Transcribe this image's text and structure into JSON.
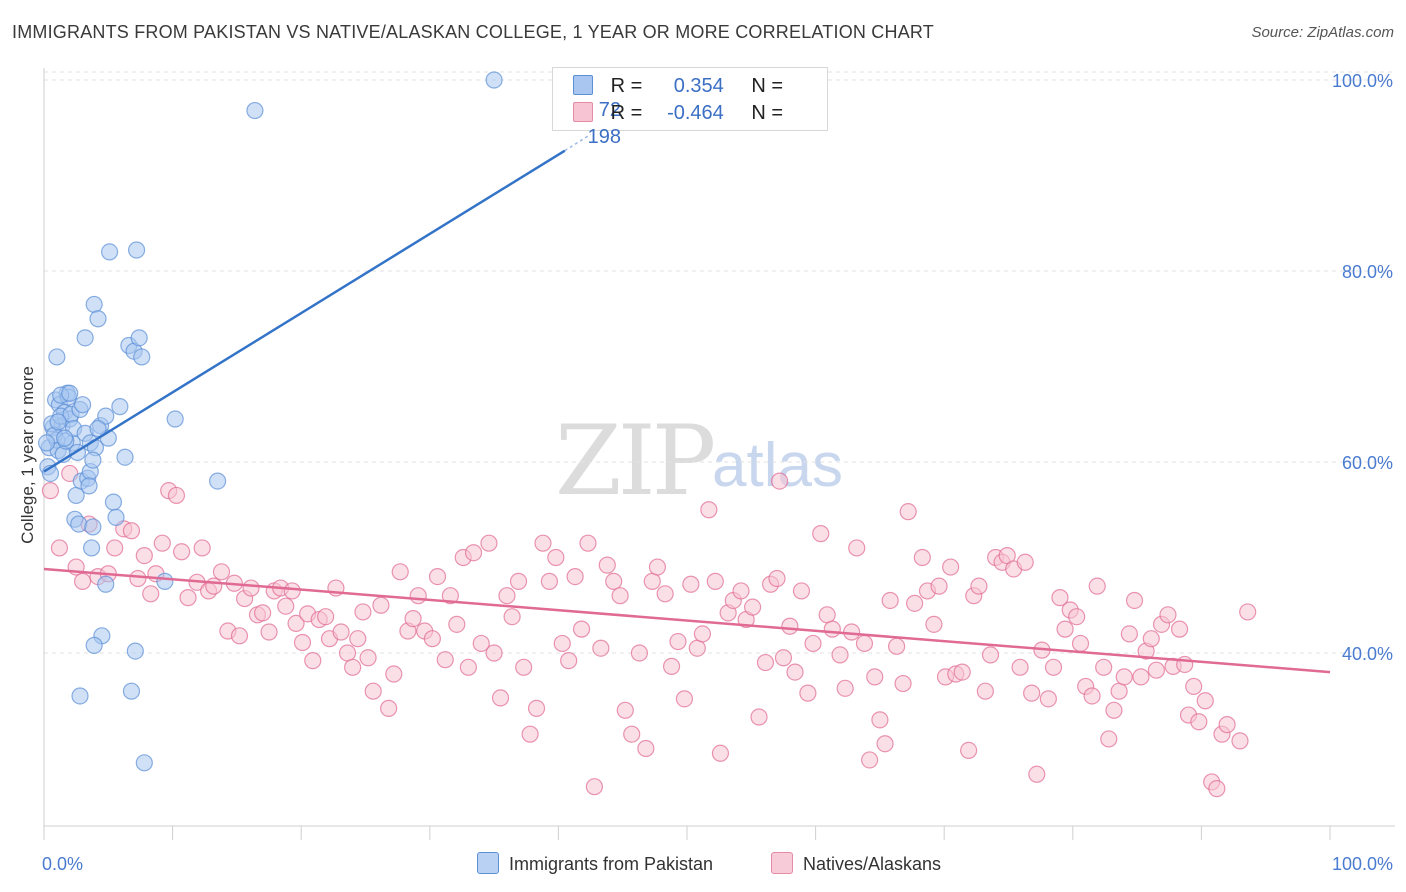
{
  "title": "IMMIGRANTS FROM PAKISTAN VS NATIVE/ALASKAN COLLEGE, 1 YEAR OR MORE CORRELATION CHART",
  "source": "Source: ZipAtlas.com",
  "watermark": {
    "zip": "ZIP",
    "atlas": "atlas"
  },
  "legend": {
    "rows": [
      {
        "r_label": "R =",
        "r_value": "0.354",
        "n_label": "N =",
        "n_value": "72",
        "color": "#a8c6f0",
        "border": "#5b8fd6"
      },
      {
        "r_label": "R =",
        "r_value": "-0.464",
        "n_label": "N =",
        "n_value": "198",
        "color": "#f7c4d3",
        "border": "#e68aa6"
      }
    ]
  },
  "bottom_legend": [
    {
      "label": "Immigrants from Pakistan",
      "color": "#b9d1f3",
      "border": "#5b8fd6"
    },
    {
      "label": "Natives/Alaskans",
      "color": "#f8cbd8",
      "border": "#e68aa6"
    }
  ],
  "chart_data": {
    "type": "scatter",
    "title": "IMMIGRANTS FROM PAKISTAN VS NATIVE/ALASKAN COLLEGE, 1 YEAR OR MORE CORRELATION CHART",
    "xlabel": "",
    "ylabel": "College, 1 year or more",
    "xlim": [
      0,
      100
    ],
    "ylim": [
      23,
      102
    ],
    "x_tick_labels": [
      "0.0%",
      "100.0%"
    ],
    "y_ticks": [
      40,
      60,
      80,
      100
    ],
    "y_tick_labels": [
      "40.0%",
      "60.0%",
      "80.0%",
      "100.0%"
    ],
    "grid": true,
    "legend_position": "top-center",
    "series": [
      {
        "name": "Immigrants from Pakistan",
        "color": "#5b8fd6",
        "fill": "#a8c6f0",
        "trend": {
          "x": [
            0,
            40.5
          ],
          "y": [
            59.0,
            92.6
          ],
          "dashed_ext": {
            "x": [
              40.5,
              42.5
            ],
            "y": [
              92.6,
              94.3
            ]
          }
        },
        "points": [
          [
            0.4,
            61.5
          ],
          [
            0.7,
            63.6
          ],
          [
            0.9,
            66.5
          ],
          [
            1.0,
            62.3
          ],
          [
            1.2,
            66.0
          ],
          [
            1.4,
            63.8
          ],
          [
            1.6,
            65.2
          ],
          [
            1.8,
            67.2
          ],
          [
            2.0,
            64.5
          ],
          [
            2.2,
            62.0
          ],
          [
            0.3,
            59.5
          ],
          [
            0.6,
            64.0
          ],
          [
            0.8,
            62.8
          ],
          [
            1.1,
            61.2
          ],
          [
            1.3,
            64.8
          ],
          [
            1.5,
            60.8
          ],
          [
            1.7,
            62.2
          ],
          [
            1.9,
            66.8
          ],
          [
            2.1,
            65.0
          ],
          [
            2.3,
            63.5
          ],
          [
            0.5,
            58.8
          ],
          [
            1.0,
            71.0
          ],
          [
            2.8,
            65.5
          ],
          [
            3.0,
            66.0
          ],
          [
            3.2,
            63.0
          ],
          [
            3.6,
            62.0
          ],
          [
            4.0,
            61.5
          ],
          [
            4.4,
            63.8
          ],
          [
            4.8,
            64.8
          ],
          [
            5.0,
            62.5
          ],
          [
            2.5,
            56.5
          ],
          [
            2.9,
            58.0
          ],
          [
            3.4,
            58.3
          ],
          [
            3.6,
            59.0
          ],
          [
            2.4,
            54.0
          ],
          [
            2.7,
            53.5
          ],
          [
            3.8,
            53.2
          ],
          [
            3.7,
            51.0
          ],
          [
            5.4,
            55.8
          ],
          [
            5.6,
            54.2
          ],
          [
            3.2,
            73.0
          ],
          [
            3.9,
            76.5
          ],
          [
            4.2,
            75.0
          ],
          [
            5.1,
            82.0
          ],
          [
            7.2,
            82.2
          ],
          [
            6.6,
            72.2
          ],
          [
            7.0,
            71.6
          ],
          [
            7.6,
            71.0
          ],
          [
            7.4,
            73.0
          ],
          [
            10.2,
            64.5
          ],
          [
            5.9,
            65.8
          ],
          [
            6.3,
            60.5
          ],
          [
            3.8,
            60.2
          ],
          [
            2.6,
            61.0
          ],
          [
            9.4,
            47.5
          ],
          [
            4.8,
            47.2
          ],
          [
            4.5,
            41.8
          ],
          [
            3.9,
            40.8
          ],
          [
            7.1,
            40.2
          ],
          [
            2.8,
            35.5
          ],
          [
            6.8,
            36.0
          ],
          [
            7.8,
            28.5
          ],
          [
            13.5,
            58.0
          ],
          [
            16.4,
            96.8
          ],
          [
            35.0,
            100.0
          ],
          [
            1.3,
            67.0
          ],
          [
            2.0,
            67.2
          ],
          [
            1.6,
            62.5
          ],
          [
            3.5,
            57.5
          ],
          [
            4.2,
            63.5
          ],
          [
            0.2,
            62.0
          ],
          [
            1.1,
            64.2
          ]
        ]
      },
      {
        "name": "Natives/Alaskans",
        "color": "#e06a93",
        "fill": "#f7c4d3",
        "trend": {
          "x": [
            0,
            100
          ],
          "y": [
            48.8,
            38.0
          ]
        },
        "points": [
          [
            0.5,
            57.0
          ],
          [
            1.2,
            51.0
          ],
          [
            2.0,
            58.8
          ],
          [
            2.5,
            49.0
          ],
          [
            3.0,
            47.5
          ],
          [
            3.5,
            53.5
          ],
          [
            4.2,
            48.0
          ],
          [
            5.0,
            48.3
          ],
          [
            5.5,
            51.0
          ],
          [
            6.2,
            53.0
          ],
          [
            6.8,
            52.8
          ],
          [
            7.3,
            47.8
          ],
          [
            7.8,
            50.2
          ],
          [
            8.3,
            46.2
          ],
          [
            8.7,
            48.3
          ],
          [
            9.2,
            51.5
          ],
          [
            9.7,
            57.0
          ],
          [
            10.3,
            56.5
          ],
          [
            10.7,
            50.6
          ],
          [
            11.2,
            45.8
          ],
          [
            11.9,
            47.4
          ],
          [
            12.3,
            51.0
          ],
          [
            12.8,
            46.5
          ],
          [
            13.2,
            47.0
          ],
          [
            13.8,
            48.5
          ],
          [
            14.3,
            42.3
          ],
          [
            14.8,
            47.3
          ],
          [
            15.2,
            41.8
          ],
          [
            15.6,
            45.7
          ],
          [
            16.1,
            46.8
          ],
          [
            16.6,
            44.0
          ],
          [
            17.0,
            44.2
          ],
          [
            17.5,
            42.2
          ],
          [
            17.9,
            46.5
          ],
          [
            18.4,
            46.8
          ],
          [
            18.8,
            44.9
          ],
          [
            19.3,
            46.5
          ],
          [
            19.6,
            43.1
          ],
          [
            20.1,
            41.1
          ],
          [
            20.5,
            44.1
          ],
          [
            20.9,
            39.2
          ],
          [
            21.4,
            43.5
          ],
          [
            21.9,
            43.8
          ],
          [
            22.2,
            41.5
          ],
          [
            22.7,
            46.8
          ],
          [
            23.1,
            42.2
          ],
          [
            23.6,
            40.0
          ],
          [
            24.0,
            38.5
          ],
          [
            24.4,
            41.5
          ],
          [
            24.8,
            44.3
          ],
          [
            25.2,
            39.5
          ],
          [
            25.6,
            36.0
          ],
          [
            26.2,
            45.0
          ],
          [
            26.8,
            34.2
          ],
          [
            27.2,
            37.8
          ],
          [
            27.7,
            48.5
          ],
          [
            28.3,
            42.3
          ],
          [
            28.7,
            43.6
          ],
          [
            29.1,
            46.0
          ],
          [
            29.6,
            42.3
          ],
          [
            30.2,
            41.5
          ],
          [
            30.6,
            48.0
          ],
          [
            31.2,
            39.3
          ],
          [
            31.6,
            46.0
          ],
          [
            32.1,
            43.0
          ],
          [
            32.6,
            50.0
          ],
          [
            33.0,
            38.5
          ],
          [
            33.4,
            50.5
          ],
          [
            34.0,
            41.0
          ],
          [
            34.6,
            51.5
          ],
          [
            35.0,
            40.0
          ],
          [
            35.5,
            35.3
          ],
          [
            36.0,
            46.0
          ],
          [
            36.4,
            43.8
          ],
          [
            36.9,
            47.5
          ],
          [
            37.3,
            38.5
          ],
          [
            37.8,
            31.5
          ],
          [
            38.3,
            34.2
          ],
          [
            38.8,
            51.5
          ],
          [
            39.3,
            47.5
          ],
          [
            39.8,
            50.0
          ],
          [
            40.3,
            41.0
          ],
          [
            40.8,
            39.2
          ],
          [
            41.3,
            48.0
          ],
          [
            41.8,
            42.5
          ],
          [
            42.3,
            51.5
          ],
          [
            42.8,
            26.0
          ],
          [
            43.3,
            40.5
          ],
          [
            43.8,
            49.2
          ],
          [
            44.3,
            47.5
          ],
          [
            44.8,
            46.0
          ],
          [
            45.2,
            34.0
          ],
          [
            45.7,
            31.5
          ],
          [
            46.3,
            40.0
          ],
          [
            46.8,
            30.0
          ],
          [
            47.3,
            47.5
          ],
          [
            47.7,
            49.0
          ],
          [
            48.3,
            46.2
          ],
          [
            48.8,
            38.6
          ],
          [
            49.3,
            41.2
          ],
          [
            49.8,
            35.2
          ],
          [
            50.3,
            47.2
          ],
          [
            50.8,
            40.5
          ],
          [
            51.2,
            42.0
          ],
          [
            51.7,
            55.0
          ],
          [
            52.2,
            47.5
          ],
          [
            52.6,
            29.5
          ],
          [
            53.2,
            44.2
          ],
          [
            53.6,
            45.5
          ],
          [
            54.2,
            46.5
          ],
          [
            54.6,
            43.5
          ],
          [
            55.1,
            44.8
          ],
          [
            55.6,
            33.3
          ],
          [
            56.1,
            39.0
          ],
          [
            56.5,
            47.2
          ],
          [
            57.0,
            47.8
          ],
          [
            57.5,
            39.5
          ],
          [
            58.0,
            42.8
          ],
          [
            58.4,
            38.0
          ],
          [
            58.9,
            46.5
          ],
          [
            59.4,
            35.8
          ],
          [
            59.8,
            41.0
          ],
          [
            60.4,
            52.5
          ],
          [
            60.9,
            44.0
          ],
          [
            61.3,
            42.5
          ],
          [
            61.9,
            39.8
          ],
          [
            62.3,
            36.3
          ],
          [
            62.8,
            42.2
          ],
          [
            63.2,
            51.0
          ],
          [
            63.8,
            41.0
          ],
          [
            64.2,
            28.8
          ],
          [
            64.6,
            37.5
          ],
          [
            65.0,
            33.0
          ],
          [
            65.4,
            30.5
          ],
          [
            65.8,
            45.5
          ],
          [
            66.3,
            40.7
          ],
          [
            66.8,
            36.8
          ],
          [
            67.2,
            54.8
          ],
          [
            67.7,
            45.2
          ],
          [
            68.3,
            50.0
          ],
          [
            68.7,
            46.5
          ],
          [
            69.2,
            43.0
          ],
          [
            69.6,
            47.0
          ],
          [
            70.1,
            37.5
          ],
          [
            70.5,
            49.0
          ],
          [
            70.9,
            37.8
          ],
          [
            71.4,
            38.0
          ],
          [
            71.9,
            29.8
          ],
          [
            72.3,
            46.0
          ],
          [
            72.7,
            47.0
          ],
          [
            73.2,
            36.0
          ],
          [
            73.6,
            39.8
          ],
          [
            74.0,
            50.0
          ],
          [
            74.5,
            49.5
          ],
          [
            74.9,
            50.2
          ],
          [
            75.4,
            48.8
          ],
          [
            75.9,
            38.5
          ],
          [
            76.3,
            49.5
          ],
          [
            76.8,
            35.8
          ],
          [
            77.2,
            27.3
          ],
          [
            77.6,
            40.3
          ],
          [
            78.1,
            35.2
          ],
          [
            78.5,
            38.5
          ],
          [
            79.0,
            45.8
          ],
          [
            79.4,
            42.5
          ],
          [
            79.8,
            44.5
          ],
          [
            80.3,
            43.8
          ],
          [
            80.6,
            41.0
          ],
          [
            81.0,
            36.5
          ],
          [
            81.5,
            35.5
          ],
          [
            81.9,
            47.0
          ],
          [
            82.4,
            38.5
          ],
          [
            82.8,
            31.0
          ],
          [
            83.2,
            34.0
          ],
          [
            83.6,
            36.0
          ],
          [
            84.0,
            37.5
          ],
          [
            84.4,
            42.0
          ],
          [
            84.8,
            45.5
          ],
          [
            85.3,
            37.5
          ],
          [
            85.7,
            40.2
          ],
          [
            86.1,
            41.5
          ],
          [
            86.5,
            38.2
          ],
          [
            86.9,
            43.0
          ],
          [
            87.4,
            44.0
          ],
          [
            87.8,
            38.6
          ],
          [
            88.3,
            42.5
          ],
          [
            89.0,
            33.5
          ],
          [
            89.4,
            36.5
          ],
          [
            89.8,
            32.8
          ],
          [
            90.3,
            35.0
          ],
          [
            90.8,
            26.5
          ],
          [
            91.2,
            25.8
          ],
          [
            91.6,
            31.5
          ],
          [
            92.0,
            32.5
          ],
          [
            93.0,
            30.8
          ],
          [
            93.6,
            44.3
          ],
          [
            88.7,
            38.8
          ],
          [
            57.2,
            58.0
          ]
        ]
      }
    ]
  }
}
